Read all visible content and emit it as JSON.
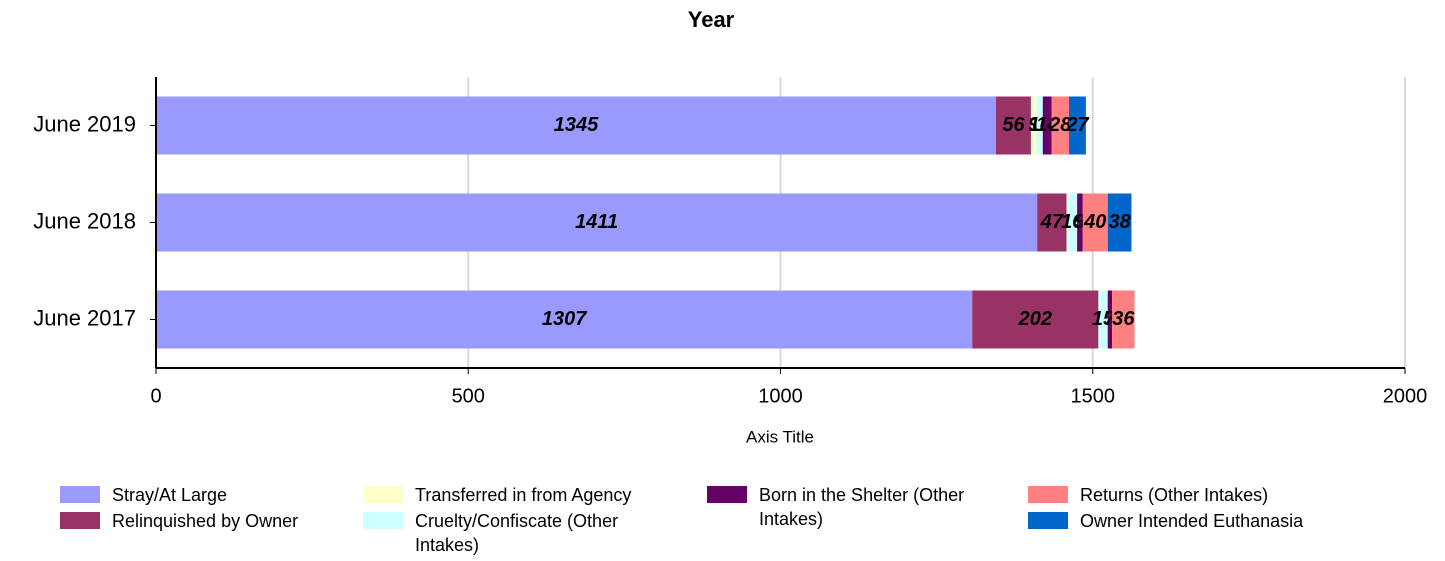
{
  "chart_data": {
    "type": "stacked-barh",
    "title": "Year",
    "x_label": "Axis Title",
    "categories": [
      "June 2017",
      "June 2018",
      "June 2019"
    ],
    "series": [
      {
        "name": "Stray/At Large",
        "color": "#9999ff",
        "values": [
          1307,
          1411,
          1345
        ]
      },
      {
        "name": "Relinquished by Owner",
        "color": "#993366",
        "values": [
          202,
          47,
          56
        ]
      },
      {
        "name": "Transferred in from Agency",
        "color": "#ffffcc",
        "values": [
          0,
          1,
          9
        ]
      },
      {
        "name": "Cruelty/Confiscate (Other Intakes)",
        "color": "#ccffff",
        "values": [
          15,
          16,
          10
        ]
      },
      {
        "name": "Born in the Shelter (Other Intakes)",
        "color": "#660066",
        "values": [
          7,
          9,
          14
        ]
      },
      {
        "name": "Returns (Other Intakes)",
        "color": "#ff8080",
        "values": [
          36,
          40,
          28
        ]
      },
      {
        "name": "Owner Intended Euthanasia",
        "color": "#0066cc",
        "values": [
          0,
          38,
          27
        ]
      }
    ],
    "xlim": [
      0,
      2000
    ],
    "xticks": [
      0,
      500,
      1000,
      1500,
      2000
    ],
    "grid": true
  }
}
